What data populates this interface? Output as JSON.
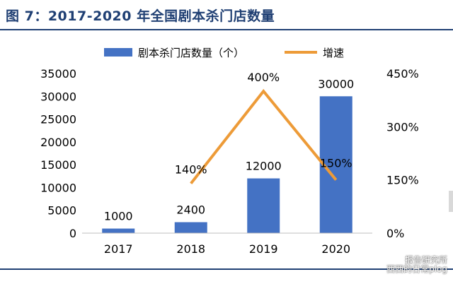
{
  "title": "图 7：2017-2020 年全国剧本杀门店数量",
  "watermark": {
    "line1": "报告研究所",
    "line2": "西西的日常plog"
  },
  "colors": {
    "bar": "#4472c4",
    "line": "#ed9b38",
    "title": "#1f3f73"
  },
  "chart_data": {
    "type": "bar",
    "categories": [
      "2017",
      "2018",
      "2019",
      "2020"
    ],
    "series": [
      {
        "name": "剧本杀门店数量（个）",
        "type": "bar",
        "axis": "left",
        "values": [
          1000,
          2400,
          12000,
          30000
        ],
        "labels": [
          "1000",
          "2400",
          "12000",
          "30000"
        ]
      },
      {
        "name": "增速",
        "type": "line",
        "axis": "right",
        "x": [
          "2018",
          "2019",
          "2020"
        ],
        "values": [
          140,
          400,
          150
        ],
        "labels": [
          "140%",
          "400%",
          "150%"
        ]
      }
    ],
    "y_left": {
      "range": [
        0,
        35000
      ],
      "ticks": [
        "0",
        "5000",
        "10000",
        "15000",
        "20000",
        "25000",
        "30000",
        "35000"
      ]
    },
    "y_right": {
      "range": [
        0,
        450
      ],
      "ticks": [
        "0%",
        "150%",
        "300%",
        "450%"
      ]
    },
    "legend": "top",
    "grid": false
  }
}
